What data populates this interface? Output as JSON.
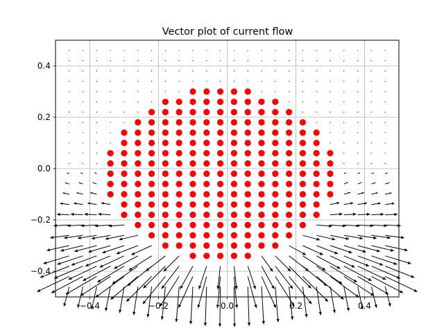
{
  "chart_data": {
    "type": "quiver-scatter",
    "title": "Vector plot of current flow",
    "xlabel": "",
    "ylabel": "",
    "xlim": [
      -0.5,
      0.5
    ],
    "ylim": [
      -0.5,
      0.5
    ],
    "x_ticks": [
      -0.4,
      -0.2,
      0.0,
      0.2,
      0.4
    ],
    "x_tick_labels": [
      "−0.4",
      "−0.2",
      "0.0",
      "0.2",
      "0.4"
    ],
    "y_ticks": [
      -0.4,
      -0.2,
      0.0,
      0.2,
      0.4
    ],
    "y_tick_labels": [
      "−0.4",
      "−0.2",
      "0.0",
      "0.2",
      "0.4"
    ],
    "grid": true,
    "vector_grid": {
      "x": [
        -0.46,
        -0.42,
        -0.38,
        -0.34,
        -0.3,
        -0.26,
        -0.22,
        -0.18,
        -0.14,
        -0.1,
        -0.06,
        -0.02,
        0.02,
        0.06,
        0.1,
        0.14,
        0.18,
        0.22,
        0.26,
        0.3,
        0.34,
        0.38,
        0.42,
        0.46
      ],
      "y": [
        0.46,
        0.42,
        0.38,
        0.34,
        0.3,
        0.26,
        0.22,
        0.18,
        0.14,
        0.1,
        0.06,
        0.02,
        -0.02,
        -0.06,
        -0.1,
        -0.14,
        -0.18,
        -0.22,
        -0.26,
        -0.3,
        -0.34,
        -0.38,
        -0.42,
        -0.46
      ],
      "field": "current flows out of the red region, strongest near the lower boundary",
      "arrow_color": "#000000"
    },
    "markers": {
      "color": "#ff0000",
      "rows": [
        {
          "y": 0.3,
          "x_min": -0.1,
          "x_max": 0.06
        },
        {
          "y": 0.26,
          "x_min": -0.18,
          "x_max": 0.14
        },
        {
          "y": 0.22,
          "x_min": -0.22,
          "x_max": 0.18
        },
        {
          "y": 0.18,
          "x_min": -0.26,
          "x_max": 0.22
        },
        {
          "y": 0.14,
          "x_min": -0.3,
          "x_max": 0.26
        },
        {
          "y": 0.1,
          "x_min": -0.3,
          "x_max": 0.26
        },
        {
          "y": 0.06,
          "x_min": -0.34,
          "x_max": 0.3
        },
        {
          "y": 0.02,
          "x_min": -0.34,
          "x_max": 0.3
        },
        {
          "y": -0.02,
          "x_min": -0.34,
          "x_max": 0.3
        },
        {
          "y": -0.06,
          "x_min": -0.34,
          "x_max": 0.3
        },
        {
          "y": -0.1,
          "x_min": -0.34,
          "x_max": 0.3
        },
        {
          "y": -0.14,
          "x_min": -0.3,
          "x_max": 0.26
        },
        {
          "y": -0.18,
          "x_min": -0.3,
          "x_max": 0.26
        },
        {
          "y": -0.22,
          "x_min": -0.26,
          "x_max": 0.22
        },
        {
          "y": -0.26,
          "x_min": -0.22,
          "x_max": 0.18
        },
        {
          "y": -0.3,
          "x_min": -0.18,
          "x_max": 0.14
        },
        {
          "y": -0.34,
          "x_min": -0.1,
          "x_max": 0.06
        }
      ],
      "step": 0.04
    }
  }
}
